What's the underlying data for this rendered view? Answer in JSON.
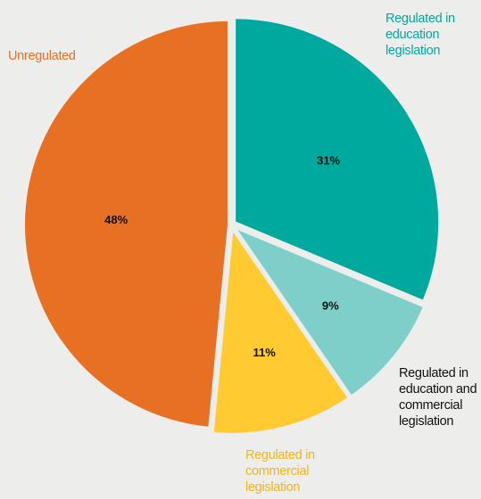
{
  "chart_data": {
    "type": "pie",
    "slices": [
      {
        "label": "Regulated in education legislation",
        "value": 31,
        "value_label": "31%",
        "color": "#00a99d",
        "label_color": "#00a99d"
      },
      {
        "label": "Regulated in education and commercial legislation",
        "value": 9,
        "value_label": "9%",
        "color": "#7ecfc9",
        "label_color": "#111111"
      },
      {
        "label": "Regulated in commercial legislation",
        "value": 11,
        "value_label": "11%",
        "color": "#ffcb30",
        "label_color": "#f0b41c"
      },
      {
        "label": "Unregulated",
        "value": 48,
        "value_label": "48%",
        "color": "#e87023",
        "label_color": "#e87023"
      }
    ],
    "start_angle_deg": 0,
    "direction": "clockwise",
    "exploded": true,
    "slice_border_color": "#ededeb"
  }
}
